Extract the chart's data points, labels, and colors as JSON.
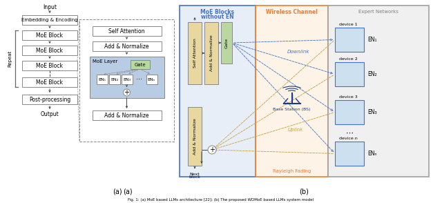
{
  "fig_width": 6.4,
  "fig_height": 2.94,
  "dpi": 100,
  "bg_color": "#ffffff",
  "caption": "Fig. 1: (a) MoE based LLMs architecture [22]; (b) The proposed WDMoE based LLMs system model",
  "panel_a_label": "(a)",
  "panel_b_label": "(b)",
  "colors": {
    "box_outline": "#888888",
    "arrow_color": "#444444",
    "dashed_box": "#888888",
    "repeat_brace": "#666666",
    "panel_b_blue_border": "#4472c4",
    "panel_b_orange_border": "#ed7d31",
    "panel_b_gray_border": "#a0a0a0",
    "panel_b_blue_bg": "#e8eef8",
    "panel_b_orange_bg": "#fdf3e7",
    "panel_b_gray_bg": "#f0f0f0",
    "downlink_color": "#4472c4",
    "uplink_color": "#c8a040",
    "self_attn_fill": "#e8d8a0",
    "add_norm_fill": "#e8d8a0",
    "gate_fill": "#b8d8a0",
    "moe_layer_fill": "#b8cce4",
    "device_fill": "#cce0f0",
    "device_border": "#4472c4",
    "rayleigh_text": "#ed7d31",
    "wireless_text": "#ed7d31",
    "moe_blocks_text": "#4472c4",
    "expert_text": "#808080",
    "bs_color": "#1a3a8a",
    "white": "#ffffff"
  }
}
